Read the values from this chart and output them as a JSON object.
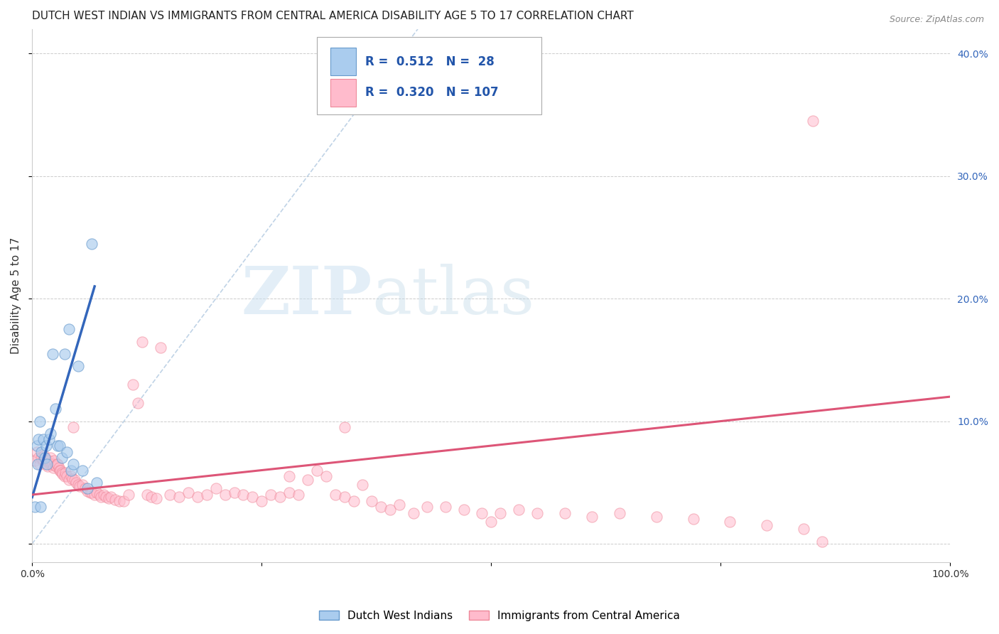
{
  "title": "DUTCH WEST INDIAN VS IMMIGRANTS FROM CENTRAL AMERICA DISABILITY AGE 5 TO 17 CORRELATION CHART",
  "source": "Source: ZipAtlas.com",
  "ylabel": "Disability Age 5 to 17",
  "xlim": [
    0.0,
    1.0
  ],
  "ylim": [
    -0.015,
    0.42
  ],
  "x_ticks": [
    0.0,
    0.25,
    0.5,
    0.75,
    1.0
  ],
  "x_tick_labels": [
    "0.0%",
    "",
    "",
    "",
    "100.0%"
  ],
  "y_ticks_right": [
    0.0,
    0.1,
    0.2,
    0.3,
    0.4
  ],
  "y_tick_labels_right": [
    "",
    "10.0%",
    "20.0%",
    "30.0%",
    "40.0%"
  ],
  "blue_R": 0.512,
  "blue_N": 28,
  "pink_R": 0.32,
  "pink_N": 107,
  "blue_color": "#aaccee",
  "blue_edge_color": "#6699cc",
  "blue_line_color": "#3366bb",
  "pink_color": "#ffbbcc",
  "pink_edge_color": "#ee8899",
  "pink_line_color": "#dd5577",
  "watermark_zip": "ZIP",
  "watermark_atlas": "atlas",
  "blue_scatter_x": [
    0.003,
    0.005,
    0.006,
    0.007,
    0.008,
    0.009,
    0.01,
    0.012,
    0.014,
    0.015,
    0.016,
    0.018,
    0.02,
    0.022,
    0.025,
    0.028,
    0.03,
    0.032,
    0.035,
    0.038,
    0.04,
    0.042,
    0.045,
    0.05,
    0.055,
    0.06,
    0.065,
    0.07
  ],
  "blue_scatter_y": [
    0.03,
    0.08,
    0.065,
    0.085,
    0.1,
    0.03,
    0.075,
    0.085,
    0.07,
    0.08,
    0.065,
    0.085,
    0.09,
    0.155,
    0.11,
    0.08,
    0.08,
    0.07,
    0.155,
    0.075,
    0.175,
    0.06,
    0.065,
    0.145,
    0.06,
    0.045,
    0.245,
    0.05
  ],
  "pink_scatter_x": [
    0.003,
    0.005,
    0.007,
    0.008,
    0.01,
    0.012,
    0.013,
    0.015,
    0.016,
    0.017,
    0.018,
    0.019,
    0.02,
    0.021,
    0.022,
    0.023,
    0.024,
    0.025,
    0.026,
    0.027,
    0.028,
    0.029,
    0.03,
    0.031,
    0.032,
    0.033,
    0.035,
    0.036,
    0.038,
    0.04,
    0.042,
    0.044,
    0.046,
    0.048,
    0.05,
    0.052,
    0.055,
    0.058,
    0.06,
    0.063,
    0.065,
    0.068,
    0.07,
    0.073,
    0.075,
    0.078,
    0.08,
    0.083,
    0.086,
    0.09,
    0.095,
    0.1,
    0.105,
    0.11,
    0.115,
    0.12,
    0.125,
    0.13,
    0.135,
    0.14,
    0.15,
    0.16,
    0.17,
    0.18,
    0.19,
    0.2,
    0.21,
    0.22,
    0.23,
    0.24,
    0.25,
    0.26,
    0.27,
    0.28,
    0.29,
    0.3,
    0.31,
    0.32,
    0.33,
    0.34,
    0.35,
    0.36,
    0.37,
    0.38,
    0.39,
    0.4,
    0.415,
    0.43,
    0.45,
    0.47,
    0.49,
    0.51,
    0.53,
    0.55,
    0.58,
    0.61,
    0.64,
    0.68,
    0.72,
    0.76,
    0.8,
    0.84,
    0.86,
    0.34,
    0.28,
    0.5,
    0.85,
    0.045
  ],
  "pink_scatter_y": [
    0.068,
    0.075,
    0.07,
    0.065,
    0.07,
    0.068,
    0.072,
    0.065,
    0.068,
    0.063,
    0.068,
    0.065,
    0.07,
    0.065,
    0.065,
    0.062,
    0.068,
    0.064,
    0.063,
    0.065,
    0.065,
    0.062,
    0.06,
    0.06,
    0.058,
    0.057,
    0.055,
    0.058,
    0.055,
    0.052,
    0.055,
    0.053,
    0.052,
    0.05,
    0.048,
    0.047,
    0.048,
    0.045,
    0.043,
    0.042,
    0.042,
    0.04,
    0.042,
    0.04,
    0.038,
    0.04,
    0.038,
    0.037,
    0.038,
    0.036,
    0.035,
    0.035,
    0.04,
    0.13,
    0.115,
    0.165,
    0.04,
    0.038,
    0.037,
    0.16,
    0.04,
    0.038,
    0.042,
    0.038,
    0.04,
    0.045,
    0.04,
    0.042,
    0.04,
    0.038,
    0.035,
    0.04,
    0.038,
    0.042,
    0.04,
    0.052,
    0.06,
    0.055,
    0.04,
    0.038,
    0.035,
    0.048,
    0.035,
    0.03,
    0.028,
    0.032,
    0.025,
    0.03,
    0.03,
    0.028,
    0.025,
    0.025,
    0.028,
    0.025,
    0.025,
    0.022,
    0.025,
    0.022,
    0.02,
    0.018,
    0.015,
    0.012,
    0.002,
    0.095,
    0.055,
    0.018,
    0.345,
    0.095
  ],
  "blue_trend_x": [
    0.0,
    0.068
  ],
  "blue_trend_y": [
    0.038,
    0.21
  ],
  "pink_trend_x": [
    0.0,
    1.0
  ],
  "pink_trend_y": [
    0.04,
    0.12
  ],
  "diag_line_x": [
    0.0,
    0.42
  ],
  "diag_line_y": [
    0.0,
    0.42
  ],
  "grid_color": "#cccccc",
  "background_color": "#ffffff",
  "title_fontsize": 11,
  "axis_label_fontsize": 11,
  "tick_fontsize": 10
}
